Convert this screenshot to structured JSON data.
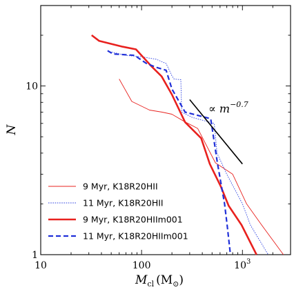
{
  "chart_data": {
    "type": "line",
    "xlabel": "M",
    "xlabel_sub": "cl",
    "xlabel_unit": "(M",
    "xlabel_unit_sub": "⊙",
    "xlabel_unit_close": ")",
    "ylabel": "N",
    "xscale": "log",
    "yscale": "log",
    "xlim": [
      10,
      3000
    ],
    "ylim": [
      1,
      30
    ],
    "x_ticks": [
      {
        "value": 10,
        "label": "10"
      },
      {
        "value": 100,
        "label": "100"
      },
      {
        "value": 1000,
        "label": "10",
        "exp": "3"
      }
    ],
    "y_ticks": [
      {
        "value": 1,
        "label": "1"
      },
      {
        "value": 10,
        "label": "10"
      }
    ],
    "grid": false,
    "legend_position": "bottom-left",
    "annotation": {
      "text": "∝ m",
      "exp": "−0.7",
      "line": {
        "x": [
          300,
          1000
        ],
        "y": [
          8.3,
          3.45
        ]
      }
    },
    "series": [
      {
        "name": "9 Myr, K18R20HII",
        "color": "#e8211e",
        "width": 0.9,
        "dash": "solid",
        "x": [
          60,
          80,
          120,
          160,
          200,
          260,
          360,
          540,
          800,
          1100,
          1550,
          2550
        ],
        "y": [
          11,
          8.1,
          7.2,
          7.0,
          6.8,
          6.2,
          5.6,
          3.5,
          3.0,
          2.0,
          1.5,
          1.0
        ]
      },
      {
        "name": "11 Myr, K18R20HII",
        "color": "#2a3fe0",
        "width": 0.9,
        "dash": "dotted",
        "x": [
          48,
          70,
          100,
          140,
          175,
          200,
          210,
          245,
          250,
          320,
          525,
          560,
          700,
          1000,
          1200,
          1800
        ],
        "y": [
          16,
          15.2,
          14.9,
          14.4,
          13.6,
          11.5,
          11.0,
          10.9,
          7.0,
          6.5,
          6.0,
          4.0,
          3.0,
          2.0,
          1.5,
          1.0
        ]
      },
      {
        "name": "9 Myr, K18R20HIIm001",
        "color": "#e8211e",
        "width": 2.6,
        "dash": "solid",
        "x": [
          32,
          38,
          65,
          88,
          125,
          158,
          200,
          270,
          390,
          475,
          610,
          730,
          980,
          1380
        ],
        "y": [
          20,
          18.5,
          17.1,
          16.5,
          13.1,
          11.4,
          8.9,
          6.1,
          4.9,
          3.45,
          2.54,
          1.95,
          1.5,
          1.0
        ]
      },
      {
        "name": "11 Myr, K18R20HIIm001",
        "color": "#1f2fd8",
        "width": 2.2,
        "dash": "dashed",
        "x": [
          46,
          52,
          85,
          112,
          140,
          175,
          200,
          270,
          395,
          485,
          565,
          665,
          705,
          760
        ],
        "y": [
          16.2,
          15.5,
          15.2,
          13.6,
          12.9,
          12.4,
          9.6,
          7.0,
          6.6,
          6.4,
          3.5,
          2.0,
          1.5,
          1.0
        ]
      }
    ]
  }
}
